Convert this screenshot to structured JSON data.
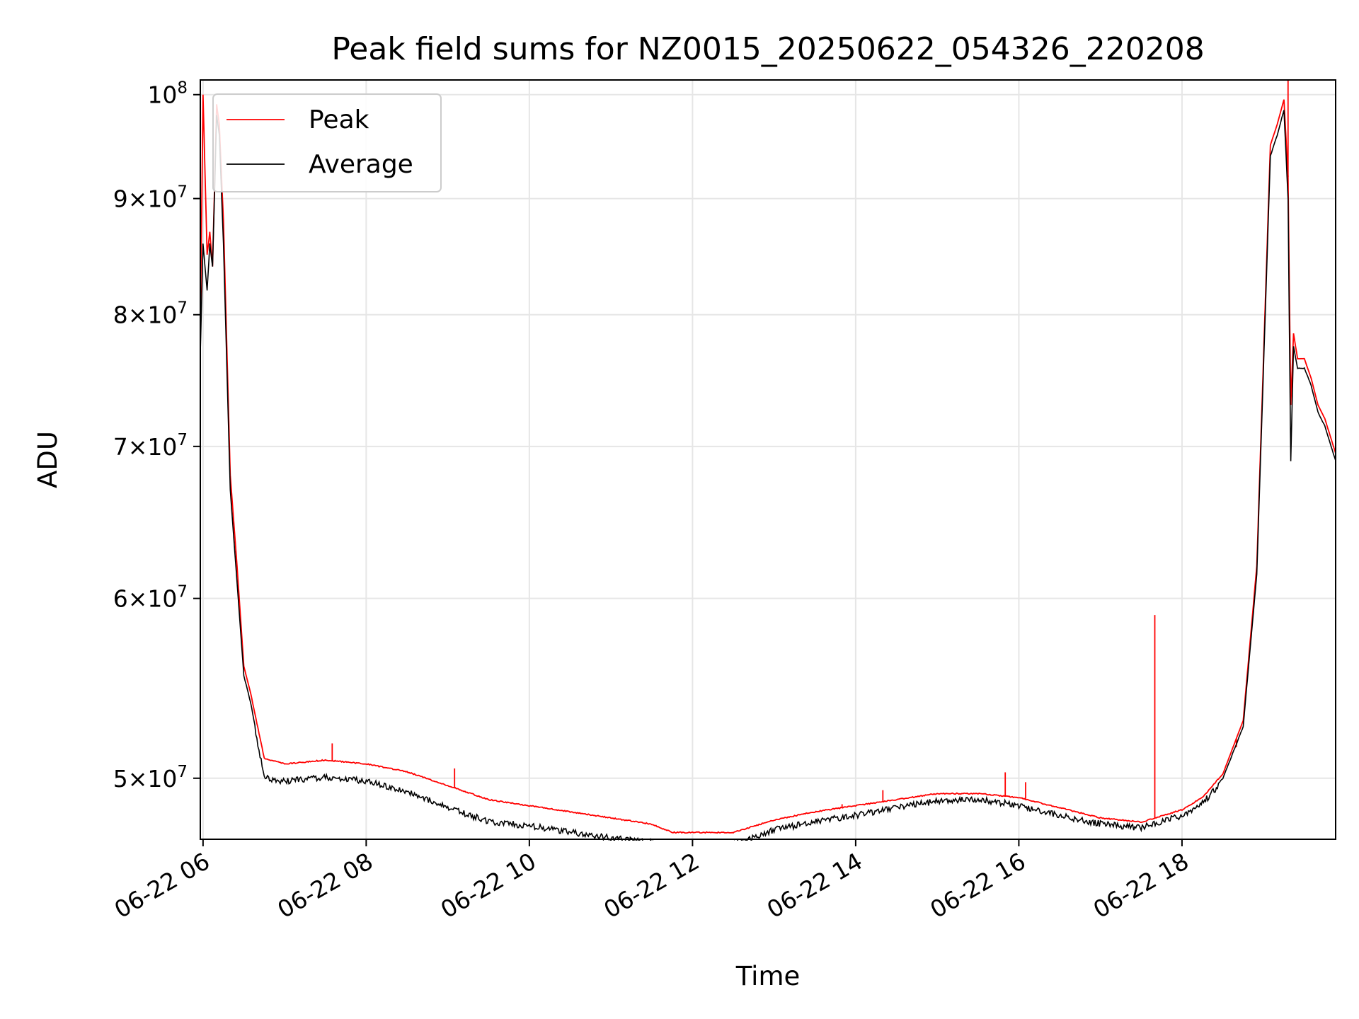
{
  "chart_data": {
    "type": "line",
    "title": "Peak field sums for NZ0015_20250622_054326_220208",
    "xlabel": "Time",
    "ylabel": "ADU",
    "yscale": "log",
    "ylim": [
      47000000,
      101500000
    ],
    "xlim": [
      "2025-06-22 05:58",
      "2025-06-22 19:53"
    ],
    "x_ticks": [
      {
        "t": "2025-06-22 06:00",
        "label": "06-22 06"
      },
      {
        "t": "2025-06-22 08:00",
        "label": "06-22 08"
      },
      {
        "t": "2025-06-22 10:00",
        "label": "06-22 10"
      },
      {
        "t": "2025-06-22 12:00",
        "label": "06-22 12"
      },
      {
        "t": "2025-06-22 14:00",
        "label": "06-22 14"
      },
      {
        "t": "2025-06-22 16:00",
        "label": "06-22 16"
      },
      {
        "t": "2025-06-22 18:00",
        "label": "06-22 18"
      }
    ],
    "y_ticks": [
      {
        "value": 50000000,
        "mantissa": "5",
        "exp": "7"
      },
      {
        "value": 60000000,
        "mantissa": "6",
        "exp": "7"
      },
      {
        "value": 70000000,
        "mantissa": "7",
        "exp": "7"
      },
      {
        "value": 80000000,
        "mantissa": "8",
        "exp": "7"
      },
      {
        "value": 90000000,
        "mantissa": "9",
        "exp": "7"
      },
      {
        "value": 100000000,
        "mantissa": "",
        "exp": "8"
      }
    ],
    "grid": true,
    "legend_position": "upper-left",
    "series": [
      {
        "name": "Peak",
        "color": "#ff0000",
        "x": [
          "2025-06-22 05:58",
          "2025-06-22 06:00",
          "2025-06-22 06:03",
          "2025-06-22 06:05",
          "2025-06-22 06:07",
          "2025-06-22 06:10",
          "2025-06-22 06:12",
          "2025-06-22 06:15",
          "2025-06-22 06:20",
          "2025-06-22 06:25",
          "2025-06-22 06:30",
          "2025-06-22 06:35",
          "2025-06-22 06:45",
          "2025-06-22 07:00",
          "2025-06-22 07:30",
          "2025-06-22 08:00",
          "2025-06-22 08:30",
          "2025-06-22 09:00",
          "2025-06-22 09:30",
          "2025-06-22 10:00",
          "2025-06-22 10:30",
          "2025-06-22 11:00",
          "2025-06-22 11:30",
          "2025-06-22 11:45",
          "2025-06-22 12:00",
          "2025-06-22 12:30",
          "2025-06-22 13:00",
          "2025-06-22 13:30",
          "2025-06-22 14:00",
          "2025-06-22 14:30",
          "2025-06-22 15:00",
          "2025-06-22 15:30",
          "2025-06-22 16:00",
          "2025-06-22 16:30",
          "2025-06-22 17:00",
          "2025-06-22 17:30",
          "2025-06-22 18:00",
          "2025-06-22 18:15",
          "2025-06-22 18:30",
          "2025-06-22 18:45",
          "2025-06-22 18:55",
          "2025-06-22 19:05",
          "2025-06-22 19:10",
          "2025-06-22 19:15",
          "2025-06-22 19:18",
          "2025-06-22 19:20",
          "2025-06-22 19:22",
          "2025-06-22 19:25",
          "2025-06-22 19:30",
          "2025-06-22 19:35",
          "2025-06-22 19:40",
          "2025-06-22 19:45",
          "2025-06-22 19:53"
        ],
        "y": [
          79000000,
          100000000,
          85000000,
          87000000,
          84000000,
          99000000,
          97000000,
          88000000,
          68000000,
          62000000,
          56000000,
          54500000,
          51000000,
          50700000,
          50900000,
          50700000,
          50300000,
          49600000,
          48900000,
          48600000,
          48300000,
          48000000,
          47700000,
          47300000,
          47300000,
          47300000,
          47900000,
          48300000,
          48600000,
          48900000,
          49200000,
          49200000,
          49000000,
          48500000,
          48000000,
          47800000,
          48400000,
          49000000,
          50200000,
          53000000,
          62000000,
          95000000,
          97000000,
          99500000,
          92000000,
          73000000,
          78500000,
          76500000,
          76500000,
          75000000,
          73000000,
          72000000,
          69500000
        ],
        "spikes": [
          {
            "t": "2025-06-22 07:35",
            "v": 51800000
          },
          {
            "t": "2025-06-22 09:05",
            "v": 50500000
          },
          {
            "t": "2025-06-22 13:50",
            "v": 48700000
          },
          {
            "t": "2025-06-22 14:20",
            "v": 49400000
          },
          {
            "t": "2025-06-22 15:50",
            "v": 50300000
          },
          {
            "t": "2025-06-22 16:05",
            "v": 49800000
          },
          {
            "t": "2025-06-22 17:40",
            "v": 59000000
          },
          {
            "t": "2025-06-22 18:40",
            "v": 51600000
          },
          {
            "t": "2025-06-22 19:18",
            "v": 101500000
          }
        ]
      },
      {
        "name": "Average",
        "color": "#000000",
        "x": [
          "2025-06-22 05:58",
          "2025-06-22 06:00",
          "2025-06-22 06:03",
          "2025-06-22 06:05",
          "2025-06-22 06:07",
          "2025-06-22 06:10",
          "2025-06-22 06:12",
          "2025-06-22 06:15",
          "2025-06-22 06:20",
          "2025-06-22 06:25",
          "2025-06-22 06:30",
          "2025-06-22 06:35",
          "2025-06-22 06:45",
          "2025-06-22 07:00",
          "2025-06-22 07:30",
          "2025-06-22 08:00",
          "2025-06-22 08:30",
          "2025-06-22 09:00",
          "2025-06-22 09:30",
          "2025-06-22 10:00",
          "2025-06-22 10:30",
          "2025-06-22 11:00",
          "2025-06-22 11:30",
          "2025-06-22 11:45",
          "2025-06-22 12:00",
          "2025-06-22 12:30",
          "2025-06-22 13:00",
          "2025-06-22 13:30",
          "2025-06-22 14:00",
          "2025-06-22 14:30",
          "2025-06-22 15:00",
          "2025-06-22 15:30",
          "2025-06-22 16:00",
          "2025-06-22 16:30",
          "2025-06-22 17:00",
          "2025-06-22 17:30",
          "2025-06-22 18:00",
          "2025-06-22 18:15",
          "2025-06-22 18:30",
          "2025-06-22 18:45",
          "2025-06-22 18:55",
          "2025-06-22 19:05",
          "2025-06-22 19:10",
          "2025-06-22 19:15",
          "2025-06-22 19:18",
          "2025-06-22 19:20",
          "2025-06-22 19:22",
          "2025-06-22 19:25",
          "2025-06-22 19:30",
          "2025-06-22 19:35",
          "2025-06-22 19:40",
          "2025-06-22 19:45",
          "2025-06-22 19:53"
        ],
        "y": [
          77000000,
          86000000,
          82000000,
          86000000,
          84000000,
          98000000,
          96000000,
          86000000,
          67000000,
          61000000,
          55500000,
          54000000,
          50200000,
          50000000,
          50200000,
          50000000,
          49500000,
          48700000,
          48000000,
          47800000,
          47500000,
          47200000,
          47000000,
          46900000,
          46900000,
          46900000,
          47600000,
          48000000,
          48300000,
          48700000,
          49000000,
          49100000,
          48800000,
          48300000,
          47900000,
          47700000,
          48300000,
          48900000,
          50000000,
          52700000,
          61500000,
          94000000,
          96000000,
          98500000,
          90000000,
          69000000,
          77500000,
          75800000,
          75800000,
          74500000,
          72500000,
          71500000,
          69000000
        ]
      }
    ]
  }
}
